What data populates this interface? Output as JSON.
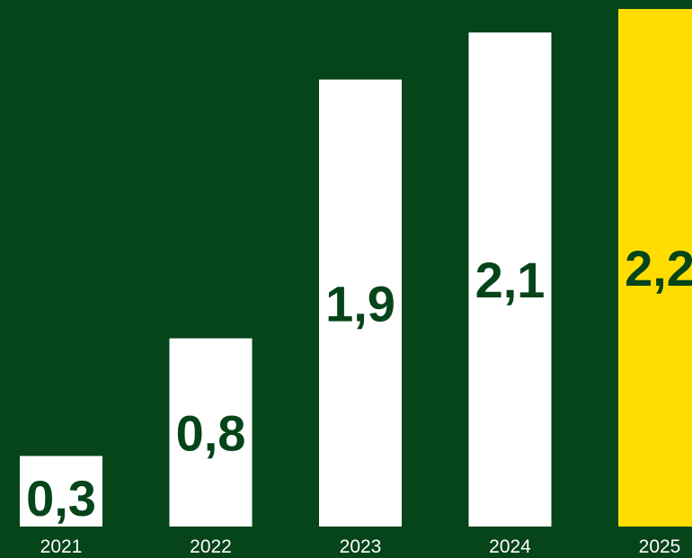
{
  "chart_data": {
    "type": "bar",
    "categories": [
      "2021",
      "2022",
      "2023",
      "2024",
      "2025"
    ],
    "values": [
      0.3,
      0.8,
      1.9,
      2.1,
      2.2
    ],
    "value_labels": [
      "0,3",
      "0,8",
      "1,9",
      "2,1",
      "2,2"
    ],
    "title": "",
    "xlabel": "",
    "ylabel": "",
    "ylim": [
      0,
      2.2
    ],
    "grid": false,
    "legend": "none"
  },
  "colors": {
    "background": "#06441a",
    "bar": "#ffffff",
    "highlight_bar": "#ffdd00",
    "value_text": "#06441a",
    "tick_text": "#ffffff"
  },
  "highlight_index": 4
}
